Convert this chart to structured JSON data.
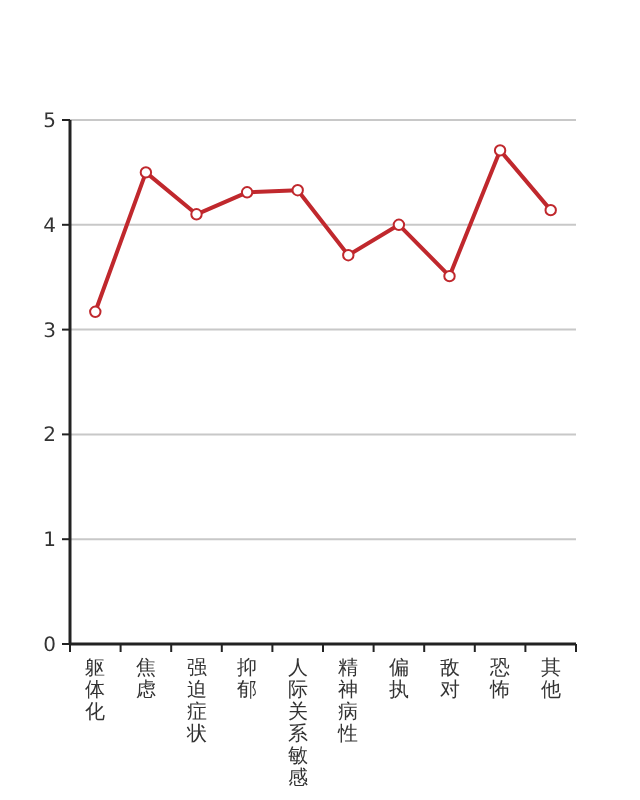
{
  "chart_data": {
    "type": "line",
    "categories": [
      "躯体化",
      "焦虑",
      "强迫症状",
      "抑郁",
      "人际关系敏感",
      "精神病性",
      "偏执",
      "敌对",
      "恐怖",
      "其他"
    ],
    "values": [
      3.17,
      4.5,
      4.1,
      4.31,
      4.33,
      3.71,
      4.0,
      3.51,
      4.71,
      4.14
    ],
    "color": "#c0282d",
    "ylim": [
      0,
      5
    ],
    "yticks": [
      0,
      1,
      2,
      3,
      4,
      5
    ],
    "grid": "y",
    "marker": "circle"
  }
}
